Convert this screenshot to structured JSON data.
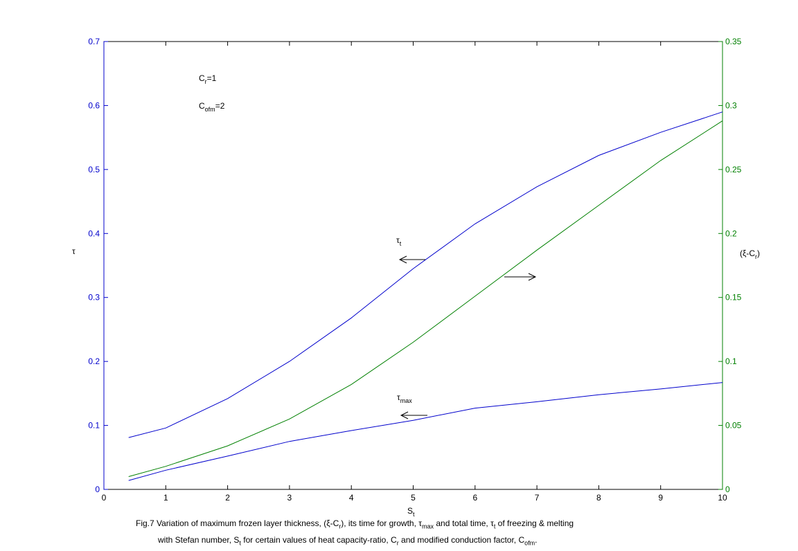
{
  "chart_data": {
    "type": "line",
    "x_label": {
      "main": "S",
      "sub": "t"
    },
    "left_axis": {
      "label": "τ",
      "ylim": [
        0,
        0.7
      ],
      "ticks": [
        "0",
        "0.1",
        "0.2",
        "0.3",
        "0.4",
        "0.5",
        "0.6",
        "0.7"
      ],
      "color": "#0000cc"
    },
    "right_axis": {
      "label": {
        "main": "(ξ-C",
        "sub": "r",
        "tail": ")"
      },
      "ylim": [
        0,
        0.35
      ],
      "ticks": [
        "0",
        "0.05",
        "0.1",
        "0.15",
        "0.2",
        "0.25",
        "0.3",
        "0.35"
      ],
      "color": "#008000"
    },
    "xlim": [
      0,
      10
    ],
    "x_ticks": [
      "0",
      "1",
      "2",
      "3",
      "4",
      "5",
      "6",
      "7",
      "8",
      "9",
      "10"
    ],
    "series": [
      {
        "axis": "left",
        "color": "#0000cc",
        "x": [
          0.4,
          1,
          2,
          3,
          4,
          5,
          6,
          7,
          8,
          9,
          10
        ],
        "y": [
          0.081,
          0.096,
          0.142,
          0.2,
          0.268,
          0.345,
          0.415,
          0.473,
          0.522,
          0.558,
          0.59
        ]
      },
      {
        "axis": "left",
        "color": "#0000cc",
        "x": [
          0.4,
          1,
          2,
          3,
          4,
          5,
          6,
          7,
          8,
          9,
          10
        ],
        "y": [
          0.014,
          0.03,
          0.052,
          0.075,
          0.092,
          0.108,
          0.127,
          0.137,
          0.148,
          0.157,
          0.167
        ]
      },
      {
        "axis": "right",
        "color": "#008000",
        "x": [
          0.4,
          1,
          2,
          3,
          4,
          5,
          6,
          7,
          8,
          9,
          10
        ],
        "y": [
          0.01,
          0.018,
          0.034,
          0.055,
          0.082,
          0.115,
          0.151,
          0.187,
          0.222,
          0.257,
          0.288
        ]
      }
    ],
    "annotations": {
      "cr": {
        "main": "C",
        "sub": "r",
        "tail": "=1"
      },
      "cofm": {
        "main": "C",
        "sub": "ofm",
        "tail": "=2"
      },
      "tau_t": {
        "main": "τ",
        "sub": "t"
      },
      "tau_max": {
        "main": "τ",
        "sub": "max"
      }
    }
  },
  "caption": {
    "line1": [
      "Fig.7 Variation of maximum frozen layer thickness, (ξ-C",
      "r",
      "), its time for growth, τ",
      "max",
      " and total time, τ",
      "t",
      " of freezing & melting"
    ],
    "line2": [
      "with Stefan number, S",
      "t",
      " for certain values of heat capacity-ratio, C",
      "r",
      " and modified conduction factor, C",
      "ofm",
      "."
    ]
  }
}
